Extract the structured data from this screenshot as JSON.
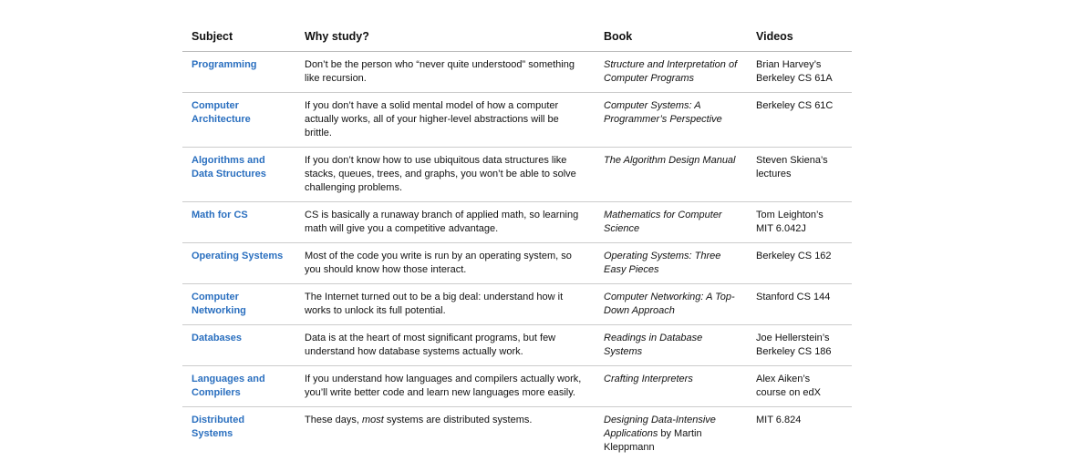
{
  "headers": [
    "Subject",
    "Why study?",
    "Book",
    "Videos"
  ],
  "rows": [
    {
      "subject": "Programming",
      "why": "Don’t be the person who “never quite understood” something like recursion.",
      "book": "Structure and Interpretation of Computer Programs",
      "videos": "Brian Harvey’s Berkeley CS 61A"
    },
    {
      "subject": "Computer Architecture",
      "why": "If you don’t have a solid mental model of how a computer actually works, all of your higher-level abstractions will be brittle.",
      "book": "Computer Systems: A Programmer’s Perspective",
      "videos": "Berkeley CS 61C"
    },
    {
      "subject": "Algorithms and Data Structures",
      "why": "If you don’t know how to use ubiquitous data structures like stacks, queues, trees, and graphs, you won’t be able to solve challenging problems.",
      "book": "The Algorithm Design Manual",
      "videos": "Steven Skiena’s lectures"
    },
    {
      "subject": "Math for CS",
      "why": "CS is basically a runaway branch of applied math, so learning math will give you a competitive advantage.",
      "book": "Mathematics for Computer Science",
      "videos": "Tom Leighton’s MIT 6.042J"
    },
    {
      "subject": "Operating Systems",
      "why": "Most of the code you write is run by an operating system, so you should know how those interact.",
      "book": "Operating Systems: Three Easy Pieces",
      "videos": "Berkeley CS 162"
    },
    {
      "subject": "Computer Networking",
      "why": "The Internet turned out to be a big deal: understand how it works to unlock its full potential.",
      "book": "Computer Networking: A Top-Down Approach",
      "videos": "Stanford CS 144"
    },
    {
      "subject": "Databases",
      "why": "Data is at the heart of most significant programs, but few understand how database systems actually work.",
      "book": "Readings in Database Systems",
      "videos": "Joe Hellerstein’s Berkeley CS 186"
    },
    {
      "subject": "Languages and Compilers",
      "why": "If you understand how languages and compilers actually work, you’ll write better code and learn new languages more easily.",
      "book": "Crafting Interpreters",
      "videos": "Alex Aiken’s course on edX"
    },
    {
      "subject": "Distributed Systems",
      "why_pre": "These days, ",
      "why_em": "most",
      "why_post": " systems are distributed systems.",
      "book": "Designing Data-Intensive Applications",
      "book_suffix": " by Martin Kleppmann",
      "videos": "MIT 6.824"
    }
  ]
}
